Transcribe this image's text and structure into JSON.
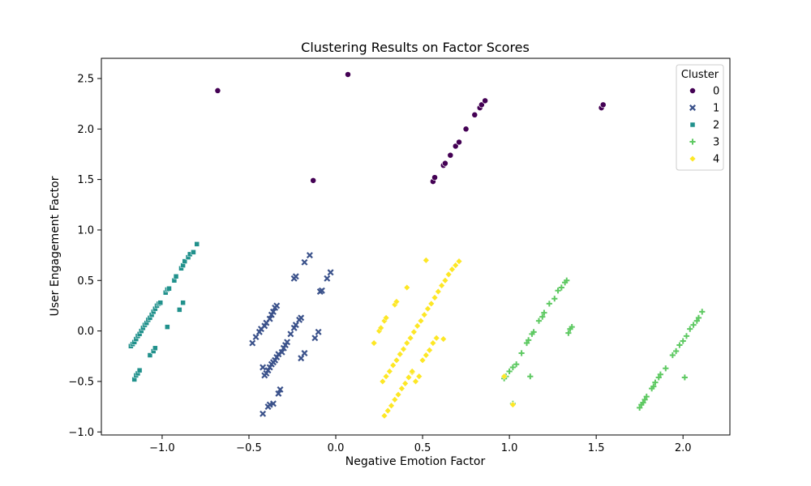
{
  "chart_data": {
    "type": "scatter",
    "title": "Clustering Results on Factor Scores",
    "xlabel": "Negative Emotion Factor",
    "ylabel": "User Engagement Factor",
    "xlim": [
      -1.35,
      2.27
    ],
    "ylim": [
      -1.03,
      2.7
    ],
    "xticks": [
      -1.0,
      -0.5,
      0.0,
      0.5,
      1.0,
      1.5,
      2.0
    ],
    "xtick_labels": [
      "−1.0",
      "−0.5",
      "0.0",
      "0.5",
      "1.0",
      "1.5",
      "2.0"
    ],
    "yticks": [
      -1.0,
      -0.5,
      0.0,
      0.5,
      1.0,
      1.5,
      2.0,
      2.5
    ],
    "ytick_labels": [
      "−1.0",
      "−0.5",
      "0.0",
      "0.5",
      "1.0",
      "1.5",
      "2.0",
      "2.5"
    ],
    "grid": false,
    "legend": {
      "title": "Cluster",
      "placement": "top-right"
    },
    "series": [
      {
        "name": "0",
        "marker": "circle",
        "color": "#440154",
        "points": [
          [
            -0.68,
            2.38
          ],
          [
            0.07,
            2.54
          ],
          [
            -0.13,
            1.49
          ],
          [
            0.56,
            1.48
          ],
          [
            0.57,
            1.52
          ],
          [
            0.62,
            1.64
          ],
          [
            0.63,
            1.66
          ],
          [
            0.66,
            1.74
          ],
          [
            0.69,
            1.83
          ],
          [
            0.71,
            1.87
          ],
          [
            0.75,
            2.0
          ],
          [
            0.8,
            2.14
          ],
          [
            0.83,
            2.21
          ],
          [
            0.84,
            2.24
          ],
          [
            0.86,
            2.28
          ],
          [
            1.53,
            2.21
          ],
          [
            1.54,
            2.24
          ]
        ]
      },
      {
        "name": "1",
        "marker": "x",
        "color": "#3b528b",
        "points": [
          [
            -0.48,
            -0.12
          ],
          [
            -0.46,
            -0.06
          ],
          [
            -0.44,
            -0.01
          ],
          [
            -0.43,
            0.02
          ],
          [
            -0.41,
            0.05
          ],
          [
            -0.4,
            0.08
          ],
          [
            -0.38,
            0.12
          ],
          [
            -0.37,
            0.16
          ],
          [
            -0.36,
            0.19
          ],
          [
            -0.35,
            0.23
          ],
          [
            -0.34,
            0.25
          ],
          [
            -0.42,
            -0.36
          ],
          [
            -0.41,
            -0.44
          ],
          [
            -0.4,
            -0.42
          ],
          [
            -0.39,
            -0.39
          ],
          [
            -0.38,
            -0.36
          ],
          [
            -0.37,
            -0.33
          ],
          [
            -0.36,
            -0.31
          ],
          [
            -0.35,
            -0.29
          ],
          [
            -0.34,
            -0.26
          ],
          [
            -0.33,
            -0.23
          ],
          [
            -0.31,
            -0.21
          ],
          [
            -0.3,
            -0.17
          ],
          [
            -0.29,
            -0.14
          ],
          [
            -0.28,
            -0.11
          ],
          [
            -0.26,
            -0.03
          ],
          [
            -0.24,
            0.03
          ],
          [
            -0.23,
            0.06
          ],
          [
            -0.21,
            0.11
          ],
          [
            -0.2,
            0.13
          ],
          [
            -0.24,
            0.52
          ],
          [
            -0.23,
            0.54
          ],
          [
            -0.18,
            0.68
          ],
          [
            -0.15,
            0.75
          ],
          [
            -0.09,
            0.39
          ],
          [
            -0.08,
            0.4
          ],
          [
            -0.05,
            0.52
          ],
          [
            -0.03,
            0.58
          ],
          [
            -0.42,
            -0.82
          ],
          [
            -0.39,
            -0.75
          ],
          [
            -0.38,
            -0.73
          ],
          [
            -0.36,
            -0.72
          ],
          [
            -0.33,
            -0.62
          ],
          [
            -0.32,
            -0.58
          ],
          [
            -0.2,
            -0.27
          ],
          [
            -0.18,
            -0.22
          ],
          [
            -0.12,
            -0.07
          ],
          [
            -0.1,
            -0.01
          ]
        ]
      },
      {
        "name": "2",
        "marker": "square",
        "color": "#21918c",
        "points": [
          [
            -1.18,
            -0.15
          ],
          [
            -1.17,
            -0.13
          ],
          [
            -1.16,
            -0.11
          ],
          [
            -1.15,
            -0.08
          ],
          [
            -1.14,
            -0.05
          ],
          [
            -1.13,
            -0.03
          ],
          [
            -1.12,
            0.0
          ],
          [
            -1.11,
            0.03
          ],
          [
            -1.1,
            0.06
          ],
          [
            -1.09,
            0.08
          ],
          [
            -1.08,
            0.11
          ],
          [
            -1.07,
            0.13
          ],
          [
            -1.06,
            0.16
          ],
          [
            -1.05,
            0.19
          ],
          [
            -1.04,
            0.22
          ],
          [
            -1.03,
            0.25
          ],
          [
            -1.02,
            0.27
          ],
          [
            -1.01,
            0.28
          ],
          [
            -0.98,
            0.38
          ],
          [
            -0.97,
            0.41
          ],
          [
            -0.96,
            0.42
          ],
          [
            -0.93,
            0.5
          ],
          [
            -0.92,
            0.54
          ],
          [
            -0.89,
            0.62
          ],
          [
            -0.88,
            0.65
          ],
          [
            -0.87,
            0.69
          ],
          [
            -0.85,
            0.73
          ],
          [
            -0.84,
            0.76
          ],
          [
            -0.82,
            0.78
          ],
          [
            -0.8,
            0.86
          ],
          [
            -1.16,
            -0.48
          ],
          [
            -1.15,
            -0.44
          ],
          [
            -1.14,
            -0.42
          ],
          [
            -1.13,
            -0.39
          ],
          [
            -1.07,
            -0.24
          ],
          [
            -1.05,
            -0.2
          ],
          [
            -1.04,
            -0.17
          ],
          [
            -0.97,
            0.04
          ],
          [
            -0.9,
            0.21
          ],
          [
            -0.88,
            0.28
          ]
        ]
      },
      {
        "name": "3",
        "marker": "plus",
        "color": "#5ec962",
        "points": [
          [
            0.97,
            -0.47
          ],
          [
            0.98,
            -0.45
          ],
          [
            1.0,
            -0.4
          ],
          [
            1.02,
            -0.36
          ],
          [
            1.04,
            -0.33
          ],
          [
            1.07,
            -0.22
          ],
          [
            1.1,
            -0.12
          ],
          [
            1.11,
            -0.09
          ],
          [
            1.13,
            -0.03
          ],
          [
            1.14,
            -0.01
          ],
          [
            1.17,
            0.1
          ],
          [
            1.19,
            0.14
          ],
          [
            1.2,
            0.18
          ],
          [
            1.23,
            0.27
          ],
          [
            1.26,
            0.32
          ],
          [
            1.28,
            0.4
          ],
          [
            1.3,
            0.43
          ],
          [
            1.32,
            0.48
          ],
          [
            1.33,
            0.5
          ],
          [
            1.34,
            -0.02
          ],
          [
            1.35,
            0.02
          ],
          [
            1.36,
            0.04
          ],
          [
            1.12,
            -0.45
          ],
          [
            1.02,
            -0.72
          ],
          [
            1.75,
            -0.76
          ],
          [
            1.76,
            -0.73
          ],
          [
            1.77,
            -0.71
          ],
          [
            1.78,
            -0.68
          ],
          [
            1.79,
            -0.65
          ],
          [
            1.82,
            -0.57
          ],
          [
            1.83,
            -0.55
          ],
          [
            1.84,
            -0.51
          ],
          [
            1.86,
            -0.46
          ],
          [
            1.87,
            -0.43
          ],
          [
            1.9,
            -0.37
          ],
          [
            1.94,
            -0.24
          ],
          [
            1.96,
            -0.2
          ],
          [
            1.98,
            -0.14
          ],
          [
            2.0,
            -0.1
          ],
          [
            2.02,
            -0.05
          ],
          [
            2.04,
            0.02
          ],
          [
            2.06,
            0.06
          ],
          [
            2.08,
            0.1
          ],
          [
            2.09,
            0.13
          ],
          [
            2.11,
            0.19
          ],
          [
            2.01,
            -0.46
          ]
        ]
      },
      {
        "name": "4",
        "marker": "diamond",
        "color": "#fde725",
        "points": [
          [
            0.22,
            -0.12
          ],
          [
            0.25,
            0.0
          ],
          [
            0.26,
            0.03
          ],
          [
            0.28,
            0.1
          ],
          [
            0.29,
            0.13
          ],
          [
            0.34,
            0.26
          ],
          [
            0.35,
            0.29
          ],
          [
            0.41,
            0.43
          ],
          [
            0.52,
            0.7
          ],
          [
            0.27,
            -0.5
          ],
          [
            0.29,
            -0.45
          ],
          [
            0.31,
            -0.4
          ],
          [
            0.33,
            -0.34
          ],
          [
            0.35,
            -0.29
          ],
          [
            0.37,
            -0.23
          ],
          [
            0.39,
            -0.18
          ],
          [
            0.41,
            -0.12
          ],
          [
            0.43,
            -0.07
          ],
          [
            0.45,
            -0.01
          ],
          [
            0.47,
            0.05
          ],
          [
            0.49,
            0.1
          ],
          [
            0.51,
            0.16
          ],
          [
            0.53,
            0.22
          ],
          [
            0.55,
            0.27
          ],
          [
            0.57,
            0.33
          ],
          [
            0.59,
            0.39
          ],
          [
            0.61,
            0.45
          ],
          [
            0.63,
            0.5
          ],
          [
            0.65,
            0.56
          ],
          [
            0.67,
            0.61
          ],
          [
            0.69,
            0.65
          ],
          [
            0.71,
            0.69
          ],
          [
            0.28,
            -0.84
          ],
          [
            0.3,
            -0.79
          ],
          [
            0.32,
            -0.74
          ],
          [
            0.34,
            -0.68
          ],
          [
            0.36,
            -0.63
          ],
          [
            0.38,
            -0.57
          ],
          [
            0.4,
            -0.52
          ],
          [
            0.42,
            -0.46
          ],
          [
            0.44,
            -0.41
          ],
          [
            0.44,
            -0.4
          ],
          [
            0.46,
            -0.5
          ],
          [
            0.48,
            -0.45
          ],
          [
            0.5,
            -0.29
          ],
          [
            0.52,
            -0.24
          ],
          [
            0.54,
            -0.19
          ],
          [
            0.56,
            -0.12
          ],
          [
            0.58,
            -0.07
          ],
          [
            0.62,
            -0.08
          ],
          [
            0.97,
            -0.45
          ],
          [
            1.02,
            -0.73
          ]
        ]
      }
    ]
  }
}
